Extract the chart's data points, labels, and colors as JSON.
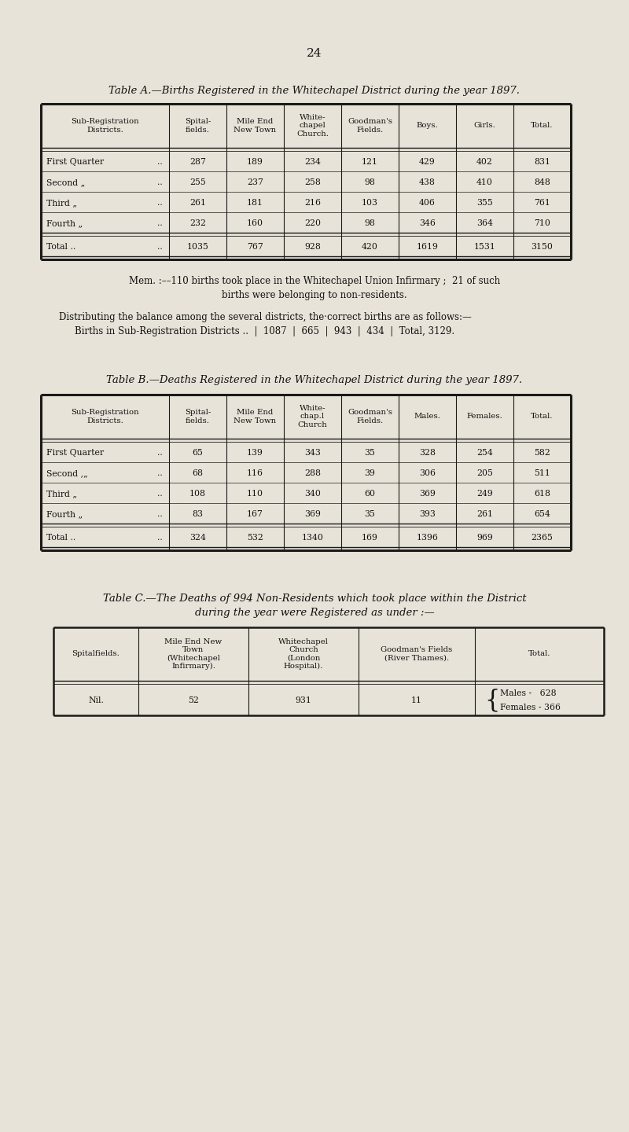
{
  "bg_color": "#e8e3d8",
  "page_number": "24",
  "table_a_title": "Table A.—Births Registered in the Whitechapel District during the year 1897.",
  "table_a_headers": [
    "Sub-Registration\nDistricts.",
    "Spital-\nfields.",
    "Mile End\nNew Town",
    "White-\nchapel\nChurch.",
    "Goodman's\nFields.",
    "Boys.",
    "Girls.",
    "Total."
  ],
  "table_a_rows": [
    [
      "First Quarter",
      "..",
      "287",
      "189",
      "234",
      "121",
      "429",
      "402",
      "831"
    ],
    [
      "Second „",
      "..",
      "255",
      "237",
      "258",
      "98",
      "438",
      "410",
      "848"
    ],
    [
      "Third „",
      "..",
      "261",
      "181",
      "216",
      "103",
      "406",
      "355",
      "761"
    ],
    [
      "Fourth „",
      "..",
      "232",
      "160",
      "220",
      "98",
      "346",
      "364",
      "710"
    ]
  ],
  "table_a_total": [
    "Total ..",
    "..",
    "1035",
    "767",
    "928",
    "420",
    "1619",
    "1531",
    "3150"
  ],
  "mem_text_1": "Mem. :––110 births took place in the Whitechapel Union Infirmary ;  21 of such",
  "mem_text_2": "births were belonging to non-residents.",
  "dist_text_1": "Distributing the balance among the several districts, the·correct births are as follows:—",
  "dist_text_2": "Births in Sub-Registration Districts ..  |  1087  |  665  |  943  |  434  |  Total, 3129.",
  "table_b_title": "Table B.—Deaths Registered in the Whitechapel District during the year 1897.",
  "table_b_headers": [
    "Sub-Registration\nDistricts.",
    "Spital-\nfields.",
    "Mile End\nNew Town",
    "White-\nchap.l\nChurch",
    "Goodman's\nFields.",
    "Males.",
    "Females.",
    "Total."
  ],
  "table_b_rows": [
    [
      "First Quarter",
      "..",
      "65",
      "139",
      "343",
      "35",
      "328",
      "254",
      "582"
    ],
    [
      "Second ,„",
      "..",
      "68",
      "116",
      "288",
      "39",
      "306",
      "205",
      "511"
    ],
    [
      "Third „",
      "..",
      "108",
      "110",
      "340",
      "60",
      "369",
      "249",
      "618"
    ],
    [
      "Fourth „",
      "..",
      "83",
      "167",
      "369",
      "35",
      "393",
      "261",
      "654"
    ]
  ],
  "table_b_total": [
    "Total ..",
    "..",
    "324",
    "532",
    "1340",
    "169",
    "1396",
    "969",
    "2365"
  ],
  "table_c_title_1": "Table C.—The Deaths of 994 Non-Residents which took place within the District",
  "table_c_title_2": "during the year were Registered as under :—",
  "table_c_headers": [
    "Spitalfields.",
    "Mile End New\nTown\n(Whitechapel\nInfirmary).",
    "Whitechapel\nChurch\n(London\nHospital).",
    "Goodman's Fields\n(River Thames).",
    "Total."
  ],
  "table_c_row": [
    "Nil.",
    "52",
    "931",
    "11",
    ""
  ],
  "males_text": "Males -   628",
  "females_text": "Females - 366"
}
